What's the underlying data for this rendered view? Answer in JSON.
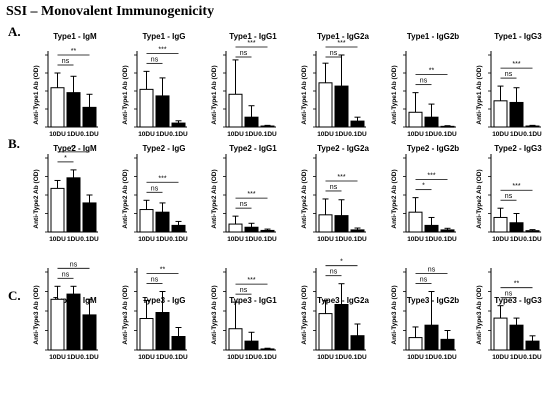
{
  "title": "SSI – Monovalent Immunogenicity",
  "categories": [
    "10DU",
    "1DU",
    "0.1DU"
  ],
  "bar_fills": [
    "#ffffff",
    "#000000",
    "#000000"
  ],
  "chart_data": [
    {
      "type": "bar",
      "row_label": "A.",
      "title": "Type1 - IgM",
      "ylabel": "Anti-Type1 Ab (OD)",
      "categories": [
        "10DU",
        "1DU",
        "0.1DU"
      ],
      "values": [
        1.2,
        1.05,
        0.6
      ],
      "errors": [
        0.45,
        0.5,
        0.4
      ],
      "ylim": [
        0,
        2.2
      ],
      "annotations": [
        {
          "from": 0,
          "to": 2,
          "text": "**"
        },
        {
          "from": 0,
          "to": 1,
          "text": "ns"
        }
      ]
    },
    {
      "type": "bar",
      "title": "Type1 - IgG",
      "ylabel": "",
      "categories": [
        "10DU",
        "1DU",
        "0.1DU"
      ],
      "values": [
        1.15,
        0.95,
        0.12
      ],
      "errors": [
        0.55,
        0.55,
        0.07
      ],
      "ylim": [
        0,
        2.2
      ],
      "annotations": [
        {
          "from": 0,
          "to": 2,
          "text": "***"
        },
        {
          "from": 0,
          "to": 1,
          "text": "ns"
        }
      ]
    },
    {
      "type": "bar",
      "title": "Type1 - IgG1",
      "ylabel": "",
      "categories": [
        "10DU",
        "1DU",
        "0.1DU"
      ],
      "values": [
        1.0,
        0.3,
        0.03
      ],
      "errors": [
        1.05,
        0.35,
        0.02
      ],
      "ylim": [
        0,
        2.2
      ],
      "annotations": [
        {
          "from": 0,
          "to": 2,
          "text": "***"
        },
        {
          "from": 0,
          "to": 1,
          "text": "ns"
        }
      ]
    },
    {
      "type": "bar",
      "title": "Type1 - IgG2a",
      "ylabel": "",
      "categories": [
        "10DU",
        "1DU",
        "0.1DU"
      ],
      "values": [
        1.35,
        1.25,
        0.18
      ],
      "errors": [
        0.6,
        0.95,
        0.12
      ],
      "ylim": [
        0,
        2.2
      ],
      "annotations": [
        {
          "from": 0,
          "to": 2,
          "text": "***"
        },
        {
          "from": 0,
          "to": 1,
          "text": "ns"
        }
      ]
    },
    {
      "type": "bar",
      "title": "Type1 - IgG2b",
      "ylabel": "",
      "categories": [
        "10DU",
        "1DU",
        "0.1DU"
      ],
      "values": [
        0.45,
        0.3,
        0.02
      ],
      "errors": [
        0.6,
        0.4,
        0.02
      ],
      "ylim": [
        0,
        2.2
      ],
      "annotations": [
        {
          "from": 0,
          "to": 2,
          "text": "**"
        },
        {
          "from": 0,
          "to": 1,
          "text": "ns"
        }
      ]
    },
    {
      "type": "bar",
      "title": "Type1 - IgG3",
      "ylabel": "",
      "categories": [
        "10DU",
        "1DU",
        "0.1DU"
      ],
      "values": [
        0.8,
        0.75,
        0.03
      ],
      "errors": [
        0.45,
        0.45,
        0.02
      ],
      "ylim": [
        0,
        2.2
      ],
      "annotations": [
        {
          "from": 0,
          "to": 2,
          "text": "***"
        },
        {
          "from": 0,
          "to": 1,
          "text": "ns"
        }
      ]
    },
    {
      "type": "bar",
      "row_label": "B.",
      "title": "Type2 - IgM",
      "ylabel": "Anti-Type2 Ab (OD)",
      "categories": [
        "10DU",
        "1DU",
        "0.1DU"
      ],
      "values": [
        1.65,
        2.05,
        1.1
      ],
      "errors": [
        0.3,
        0.3,
        0.3
      ],
      "ylim": [
        0,
        2.8
      ],
      "annotations": [
        {
          "from": 0,
          "to": 2,
          "text": "**"
        },
        {
          "from": 0,
          "to": 1,
          "text": "*"
        }
      ]
    },
    {
      "type": "bar",
      "title": "Type2 - IgG",
      "ylabel": "",
      "categories": [
        "10DU",
        "1DU",
        "0.1DU"
      ],
      "values": [
        0.85,
        0.75,
        0.25
      ],
      "errors": [
        0.35,
        0.35,
        0.15
      ],
      "ylim": [
        0,
        2.8
      ],
      "annotations": [
        {
          "from": 0,
          "to": 2,
          "text": "***"
        },
        {
          "from": 0,
          "to": 1,
          "text": "ns"
        }
      ]
    },
    {
      "type": "bar",
      "title": "Type2 - IgG1",
      "ylabel": "",
      "categories": [
        "10DU",
        "1DU",
        "0.1DU"
      ],
      "values": [
        0.3,
        0.18,
        0.06
      ],
      "errors": [
        0.3,
        0.15,
        0.05
      ],
      "ylim": [
        0,
        2.8
      ],
      "annotations": [
        {
          "from": 0,
          "to": 2,
          "text": "***"
        },
        {
          "from": 0,
          "to": 1,
          "text": "ns"
        }
      ]
    },
    {
      "type": "bar",
      "title": "Type2 - IgG2a",
      "ylabel": "",
      "categories": [
        "10DU",
        "1DU",
        "0.1DU"
      ],
      "values": [
        0.65,
        0.62,
        0.08
      ],
      "errors": [
        0.6,
        0.6,
        0.07
      ],
      "ylim": [
        0,
        2.8
      ],
      "annotations": [
        {
          "from": 0,
          "to": 2,
          "text": "***"
        },
        {
          "from": 0,
          "to": 1,
          "text": "ns"
        }
      ]
    },
    {
      "type": "bar",
      "title": "Type2 - IgG2b",
      "ylabel": "",
      "categories": [
        "10DU",
        "1DU",
        "0.1DU"
      ],
      "values": [
        0.75,
        0.25,
        0.08
      ],
      "errors": [
        0.55,
        0.3,
        0.06
      ],
      "ylim": [
        0,
        2.8
      ],
      "annotations": [
        {
          "from": 0,
          "to": 2,
          "text": "***"
        },
        {
          "from": 0,
          "to": 1,
          "text": "*"
        }
      ]
    },
    {
      "type": "bar",
      "title": "Type2 - IgG3",
      "ylabel": "",
      "categories": [
        "10DU",
        "1DU",
        "0.1DU"
      ],
      "values": [
        0.55,
        0.35,
        0.05
      ],
      "errors": [
        0.35,
        0.35,
        0.04
      ],
      "ylim": [
        0,
        2.8
      ],
      "annotations": [
        {
          "from": 0,
          "to": 2,
          "text": "***"
        },
        {
          "from": 0,
          "to": 1,
          "text": "ns"
        }
      ]
    },
    {
      "type": "bar",
      "row_label": "C.",
      "title": "Type3 - IgM",
      "ylabel": "Anti-Type3 Ab (OD)",
      "categories": [
        "10DU",
        "1DU",
        "0.1DU"
      ],
      "values": [
        1.95,
        2.15,
        1.35
      ],
      "errors": [
        0.5,
        0.3,
        0.6
      ],
      "ylim": [
        0,
        3.0
      ],
      "annotations": [
        {
          "from": 0,
          "to": 2,
          "text": "ns"
        },
        {
          "from": 0,
          "to": 1,
          "text": "ns"
        }
      ]
    },
    {
      "type": "bar",
      "title": "Type3 - IgG",
      "ylabel": "",
      "categories": [
        "10DU",
        "1DU",
        "0.1DU"
      ],
      "values": [
        1.05,
        1.25,
        0.45
      ],
      "errors": [
        0.6,
        0.7,
        0.3
      ],
      "ylim": [
        0,
        2.6
      ],
      "annotations": [
        {
          "from": 0,
          "to": 2,
          "text": "**"
        },
        {
          "from": 0,
          "to": 1,
          "text": "ns"
        }
      ]
    },
    {
      "type": "bar",
      "title": "Type3 - IgG1",
      "ylabel": "",
      "categories": [
        "10DU",
        "1DU",
        "0.1DU"
      ],
      "values": [
        0.6,
        0.25,
        0.03
      ],
      "errors": [
        0.75,
        0.25,
        0.02
      ],
      "ylim": [
        0,
        2.2
      ],
      "annotations": [
        {
          "from": 0,
          "to": 2,
          "text": "***"
        },
        {
          "from": 0,
          "to": 1,
          "text": "ns"
        }
      ]
    },
    {
      "type": "bar",
      "title": "Type3 - IgG2a",
      "ylabel": "",
      "categories": [
        "10DU",
        "1DU",
        "0.1DU"
      ],
      "values": [
        1.4,
        1.75,
        0.55
      ],
      "errors": [
        0.5,
        0.8,
        0.45
      ],
      "ylim": [
        0,
        3.0
      ],
      "annotations": [
        {
          "from": 0,
          "to": 2,
          "text": "*"
        },
        {
          "from": 0,
          "to": 1,
          "text": "ns"
        }
      ]
    },
    {
      "type": "bar",
      "title": "Type3 - IgG2b",
      "ylabel": "",
      "categories": [
        "10DU",
        "1DU",
        "0.1DU"
      ],
      "values": [
        0.35,
        0.7,
        0.3
      ],
      "errors": [
        0.3,
        0.95,
        0.25
      ],
      "ylim": [
        0,
        2.2
      ],
      "annotations": [
        {
          "from": 0,
          "to": 2,
          "text": "ns"
        },
        {
          "from": 0,
          "to": 1,
          "text": "ns"
        }
      ]
    },
    {
      "type": "bar",
      "title": "Type3 - IgG3",
      "ylabel": "",
      "categories": [
        "10DU",
        "1DU",
        "0.1DU"
      ],
      "values": [
        0.9,
        0.7,
        0.25
      ],
      "errors": [
        0.35,
        0.2,
        0.15
      ],
      "ylim": [
        0,
        2.2
      ],
      "annotations": [
        {
          "from": 0,
          "to": 2,
          "text": "**"
        },
        {
          "from": 0,
          "to": 1,
          "text": "ns"
        }
      ]
    }
  ]
}
